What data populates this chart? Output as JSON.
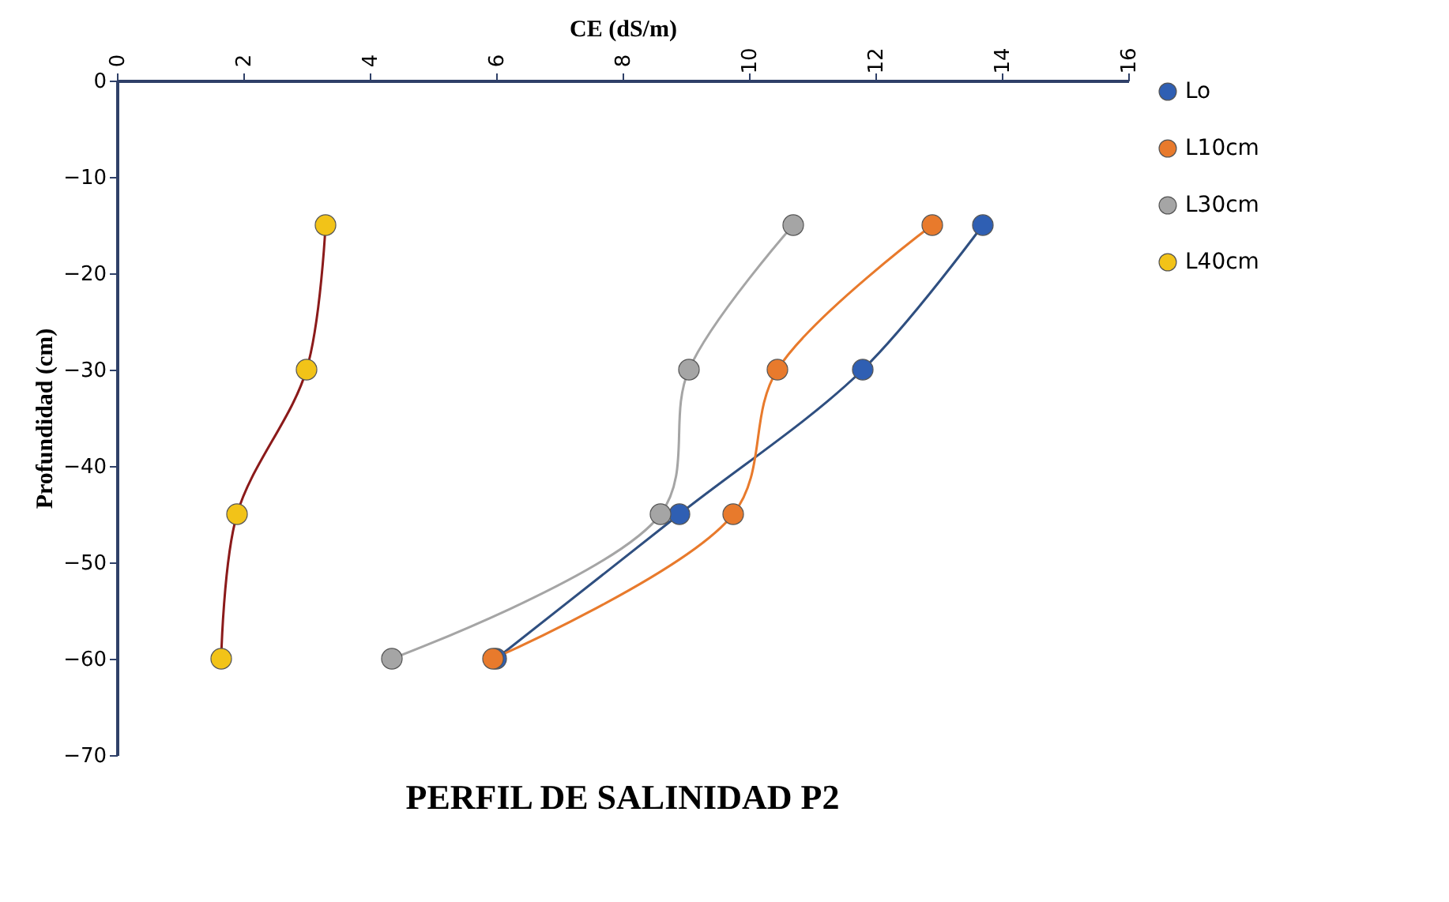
{
  "chart_data": {
    "type": "line",
    "title": "PERFIL DE SALINIDAD P2",
    "xlabel": "CE (dS/m)",
    "ylabel": "Profundidad  (cm)",
    "xlim": [
      0,
      16
    ],
    "xticks": [
      0,
      2,
      4,
      6,
      8,
      10,
      12,
      14,
      16
    ],
    "ylim": [
      -70,
      0
    ],
    "yticks": [
      -70,
      -60,
      -50,
      -40,
      -30,
      -20,
      -10,
      0
    ],
    "grid": false,
    "legend": "right",
    "marker": "circle",
    "line_style": "solid",
    "series": [
      {
        "name": "Lo",
        "color": "#2f5fb3",
        "x": [
          13.7,
          11.8,
          8.9,
          6.0
        ],
        "values": [
          -15,
          -30,
          -45,
          -60
        ]
      },
      {
        "name": "L10cm",
        "color": "#e87a2c",
        "x": [
          12.9,
          10.45,
          9.75,
          5.95
        ],
        "values": [
          -15,
          -30,
          -45,
          -60
        ]
      },
      {
        "name": "L30cm",
        "color": "#a5a5a5",
        "x": [
          10.7,
          9.05,
          8.6,
          4.35
        ],
        "values": [
          -15,
          -30,
          -45,
          -60
        ]
      },
      {
        "name": "L40cm",
        "color": "#f2c318",
        "x": [
          3.3,
          3.0,
          1.9,
          1.65
        ],
        "values": [
          -15,
          -30,
          -45,
          -60
        ]
      }
    ]
  }
}
